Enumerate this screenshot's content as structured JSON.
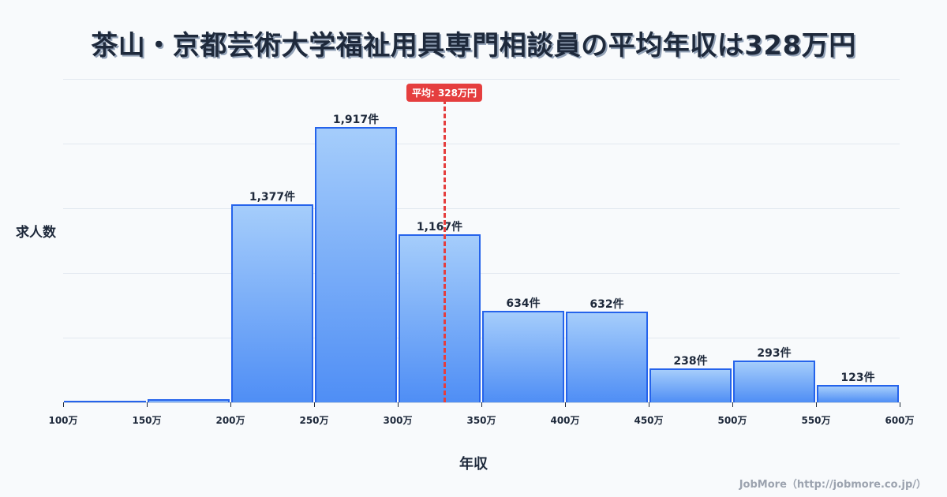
{
  "title": "茶山・京都芸術大学福祉用具専門相談員の平均年収は328万円",
  "mean_badge": "平均: 328万円",
  "ylabel": "求人数",
  "xlabel": "年収",
  "credit": "JobMore（http://jobmore.co.jp/）",
  "colors": {
    "bar_top": "#a5cdfb",
    "bar_bottom": "#4f8ef5",
    "bar_border": "#2563eb",
    "mean_line": "#e53e3e"
  },
  "chart_data": {
    "type": "bar",
    "title": "茶山・京都芸術大学福祉用具専門相談員の平均年収は328万円",
    "xlabel": "年収",
    "ylabel": "求人数",
    "x_ticks": [
      "100万",
      "150万",
      "200万",
      "250万",
      "300万",
      "350万",
      "400万",
      "450万",
      "500万",
      "550万",
      "600万"
    ],
    "categories": [
      "100-150万",
      "150-200万",
      "200-250万",
      "250-300万",
      "300-350万",
      "350-400万",
      "400-450万",
      "450-500万",
      "500-550万",
      "550-600万"
    ],
    "values": [
      8,
      22,
      1377,
      1917,
      1167,
      634,
      632,
      238,
      293,
      123
    ],
    "labels": [
      "",
      "",
      "1,377件",
      "1,917件",
      "1,167件",
      "634件",
      "632件",
      "238件",
      "293件",
      "123件"
    ],
    "mean": 328,
    "mean_label": "平均: 328万円",
    "ylim": [
      0,
      2250
    ],
    "grid": true,
    "legend": null
  }
}
